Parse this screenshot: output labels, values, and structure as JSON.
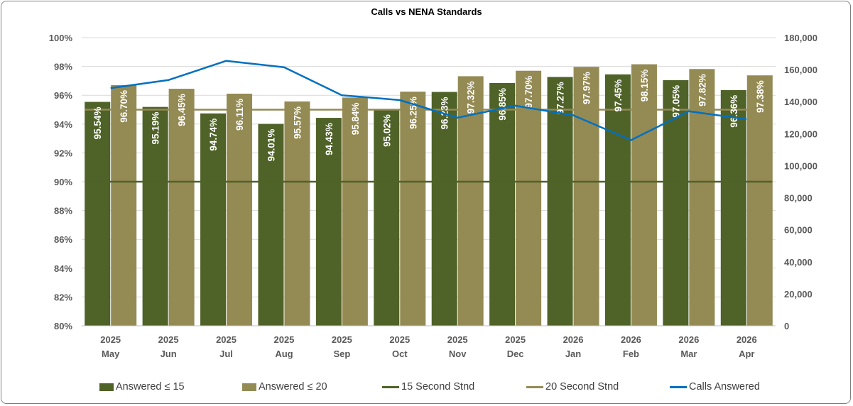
{
  "chart_data": {
    "type": "bar",
    "title": "Calls vs NENA Standards",
    "categories": [
      [
        "2025",
        "May"
      ],
      [
        "2025",
        "Jun"
      ],
      [
        "2025",
        "Jul"
      ],
      [
        "2025",
        "Aug"
      ],
      [
        "2025",
        "Sep"
      ],
      [
        "2025",
        "Oct"
      ],
      [
        "2025",
        "Nov"
      ],
      [
        "2025",
        "Dec"
      ],
      [
        "2026",
        "Jan"
      ],
      [
        "2026",
        "Feb"
      ],
      [
        "2026",
        "Mar"
      ],
      [
        "2026",
        "Apr"
      ]
    ],
    "y_left": {
      "min": 80,
      "max": 100,
      "step": 2,
      "ticks": [
        "80%",
        "82%",
        "84%",
        "86%",
        "88%",
        "90%",
        "92%",
        "94%",
        "96%",
        "98%",
        "100%"
      ]
    },
    "y_right": {
      "min": 0,
      "max": 180000,
      "step": 20000,
      "ticks": [
        "0",
        "20,000",
        "40,000",
        "60,000",
        "80,000",
        "100,000",
        "120,000",
        "140,000",
        "160,000",
        "180,000"
      ]
    },
    "series": [
      {
        "name": "Answered ≤ 15",
        "type": "bar",
        "axis": "left",
        "color": "#4f6228",
        "values": [
          95.54,
          95.19,
          94.74,
          94.01,
          94.43,
          95.02,
          96.23,
          96.85,
          97.27,
          97.45,
          97.05,
          96.36
        ],
        "labels": [
          "95.54%",
          "95.19%",
          "94.74%",
          "94.01%",
          "94.43%",
          "95.02%",
          "96.23%",
          "96.85%",
          "97.27%",
          "97.45%",
          "97.05%",
          "96.36%"
        ]
      },
      {
        "name": "Answered ≤ 20",
        "type": "bar",
        "axis": "left",
        "color": "#948a54",
        "values": [
          96.7,
          96.45,
          96.11,
          95.57,
          95.84,
          96.25,
          97.32,
          97.7,
          97.97,
          98.15,
          97.82,
          97.38
        ],
        "labels": [
          "96.70%",
          "96.45%",
          "96.11%",
          "95.57%",
          "95.84%",
          "96.25%",
          "97.32%",
          "97.70%",
          "97.97%",
          "98.15%",
          "97.82%",
          "97.38%"
        ]
      },
      {
        "name": "15 Second Stnd",
        "type": "line",
        "axis": "left",
        "color": "#4f6228",
        "values": [
          90,
          90,
          90,
          90,
          90,
          90,
          90,
          90,
          90,
          90,
          90,
          90
        ]
      },
      {
        "name": "20 Second Stnd",
        "type": "line",
        "axis": "left",
        "color": "#948a54",
        "values": [
          95,
          95,
          95,
          95,
          95,
          95,
          95,
          95,
          95,
          95,
          95,
          95
        ]
      },
      {
        "name": "Calls Answered",
        "type": "line",
        "axis": "right",
        "color": "#0070c0",
        "values": [
          148500,
          153500,
          165500,
          161500,
          144000,
          141000,
          130000,
          137500,
          131500,
          116000,
          134000,
          129000
        ]
      }
    ],
    "legend_position": "bottom",
    "grid": true
  }
}
